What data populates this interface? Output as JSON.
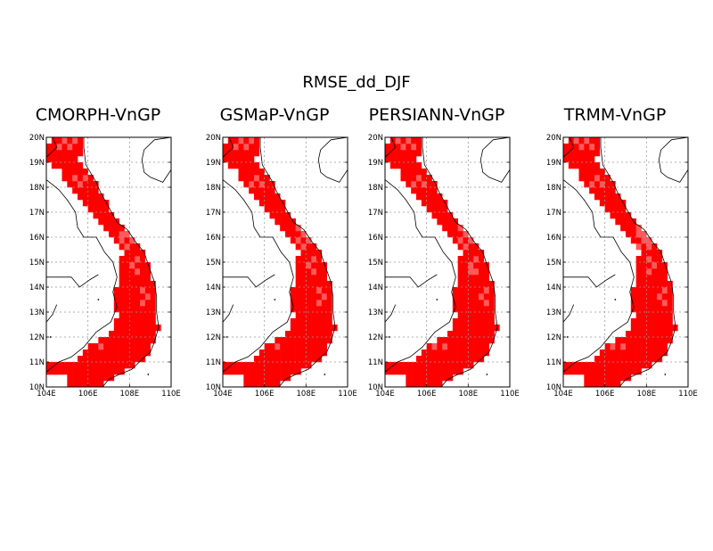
{
  "title": "RMSE_dd_DJF",
  "panels": [
    {
      "title": "CMORPH-VnGP"
    },
    {
      "title": "GSMaP-VnGP"
    },
    {
      "title": "PERSIANN-VnGP"
    },
    {
      "title": "TRMM-VnGP"
    }
  ],
  "lon_ticks": [
    "104E",
    "106E",
    "108E",
    "110E"
  ],
  "lat_ticks": [
    "10N",
    "11N",
    "12N",
    "13N",
    "14N",
    "15N",
    "16N",
    "17N",
    "18N",
    "19N",
    "20N"
  ],
  "colors": {
    "fill": "#ff0000",
    "fill_light": "#ff5a5a",
    "grid": "#999999",
    "coast": "#000000"
  }
}
